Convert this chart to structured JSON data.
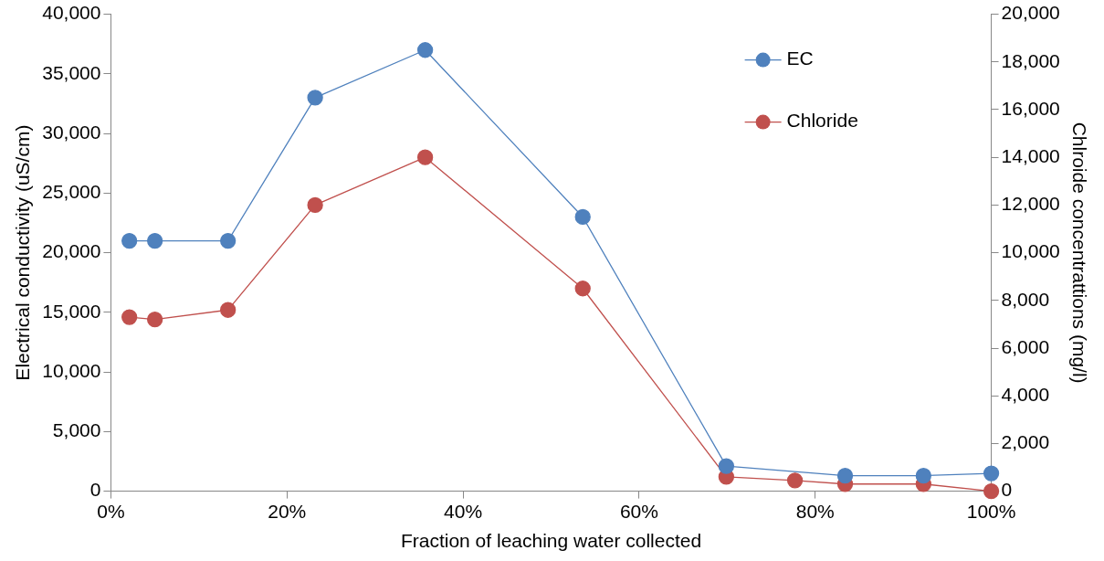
{
  "chart_data": {
    "type": "line",
    "xlabel": "Fraction of leaching water collected",
    "ylabel": "Electrical conductivity (uS/cm)",
    "y2label": "Chlroide concentrattions (mg/l)",
    "xlim": [
      0,
      100
    ],
    "xticks": [
      {
        "value": 0,
        "label": "0%"
      },
      {
        "value": 20,
        "label": "20%"
      },
      {
        "value": 40,
        "label": "40%"
      },
      {
        "value": 60,
        "label": "60%"
      },
      {
        "value": 80,
        "label": "80%"
      },
      {
        "value": 100,
        "label": "100%"
      }
    ],
    "ylim": [
      0,
      40000
    ],
    "yticks": [
      {
        "value": 0,
        "label": "0"
      },
      {
        "value": 5000,
        "label": "5,000"
      },
      {
        "value": 10000,
        "label": "10,000"
      },
      {
        "value": 15000,
        "label": "15,000"
      },
      {
        "value": 20000,
        "label": "20,000"
      },
      {
        "value": 25000,
        "label": "25,000"
      },
      {
        "value": 30000,
        "label": "30,000"
      },
      {
        "value": 35000,
        "label": "35,000"
      },
      {
        "value": 40000,
        "label": "40,000"
      }
    ],
    "y2lim": [
      0,
      20000
    ],
    "y2ticks": [
      {
        "value": 0,
        "label": "0"
      },
      {
        "value": 2000,
        "label": "2,000"
      },
      {
        "value": 4000,
        "label": "4,000"
      },
      {
        "value": 6000,
        "label": "6,000"
      },
      {
        "value": 8000,
        "label": "8,000"
      },
      {
        "value": 10000,
        "label": "10,000"
      },
      {
        "value": 12000,
        "label": "12,000"
      },
      {
        "value": 14000,
        "label": "14,000"
      },
      {
        "value": 16000,
        "label": "16,000"
      },
      {
        "value": 18000,
        "label": "18,000"
      },
      {
        "value": 20000,
        "label": "20,000"
      }
    ],
    "series": [
      {
        "name": "EC",
        "color": "#4f81bd",
        "x": [
          2.1,
          5.0,
          13.3,
          23.2,
          35.7,
          53.6,
          69.9,
          83.4,
          92.3,
          100
        ],
        "values": [
          21000,
          21000,
          21000,
          33000,
          37000,
          23000,
          2100,
          1300,
          1300,
          1500
        ]
      },
      {
        "name": "Chloride",
        "color": "#c0504d",
        "axis": "y2",
        "x": [
          2.1,
          5.0,
          13.3,
          23.2,
          35.7,
          53.6,
          69.9,
          77.7,
          83.4,
          92.3,
          100
        ],
        "values": [
          7300,
          7200,
          7600,
          12000,
          14000,
          8500,
          600,
          450,
          300,
          300,
          0
        ]
      }
    ],
    "marker": "circle",
    "line_style": "solid",
    "grid": false,
    "legend": "top right"
  }
}
